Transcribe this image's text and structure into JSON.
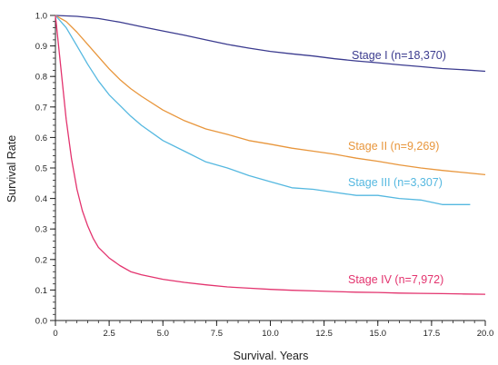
{
  "chart_data": {
    "type": "line",
    "title": "",
    "xlabel": "Survival. Years",
    "ylabel": "Survival Rate",
    "xlim": [
      0,
      20
    ],
    "ylim": [
      0,
      1
    ],
    "x_ticks": [
      "0",
      "2.5",
      "5.0",
      "7.5",
      "10.0",
      "12.5",
      "15.0",
      "17.5",
      "20.0"
    ],
    "y_ticks": [
      "0.0",
      "0.1",
      "0.2",
      "0.3",
      "0.4",
      "0.5",
      "0.6",
      "0.7",
      "0.8",
      "0.9",
      "1.0"
    ],
    "grid": false,
    "legend": "labels next to curves",
    "series": [
      {
        "name": "Stage I (n=18,370)",
        "color": "#3b3b8f",
        "x": [
          0,
          1,
          2,
          3,
          4,
          5,
          6,
          7,
          8,
          9,
          10,
          11,
          12,
          13,
          14,
          15,
          16,
          17,
          18,
          19,
          20
        ],
        "y": [
          1.0,
          0.997,
          0.99,
          0.978,
          0.963,
          0.949,
          0.935,
          0.92,
          0.905,
          0.893,
          0.882,
          0.874,
          0.867,
          0.858,
          0.851,
          0.845,
          0.838,
          0.832,
          0.826,
          0.822,
          0.817
        ]
      },
      {
        "name": "Stage II (n=9,269)",
        "color": "#e8963c",
        "x": [
          0,
          0.5,
          1,
          1.5,
          2,
          2.5,
          3,
          3.5,
          4,
          5,
          6,
          7,
          8,
          9,
          10,
          11,
          12,
          13,
          14,
          15,
          16,
          17,
          18,
          19,
          20
        ],
        "y": [
          1.0,
          0.98,
          0.945,
          0.905,
          0.865,
          0.825,
          0.79,
          0.76,
          0.735,
          0.69,
          0.655,
          0.628,
          0.61,
          0.59,
          0.578,
          0.565,
          0.555,
          0.545,
          0.532,
          0.522,
          0.51,
          0.5,
          0.492,
          0.485,
          0.478
        ]
      },
      {
        "name": "Stage III (n=3,307)",
        "color": "#55b8e0",
        "x": [
          0,
          0.5,
          1,
          1.5,
          2,
          2.5,
          3,
          3.5,
          4,
          5,
          6,
          7,
          8,
          9,
          10,
          11,
          12,
          13,
          14,
          15,
          16,
          17,
          18,
          19,
          19.3
        ],
        "y": [
          1.0,
          0.96,
          0.9,
          0.84,
          0.785,
          0.74,
          0.705,
          0.67,
          0.64,
          0.59,
          0.555,
          0.52,
          0.5,
          0.475,
          0.455,
          0.435,
          0.43,
          0.42,
          0.41,
          0.41,
          0.4,
          0.395,
          0.38,
          0.38,
          0.38
        ]
      },
      {
        "name": "Stage IV (n=7,972)",
        "color": "#e3336e",
        "x": [
          0,
          0.25,
          0.5,
          0.75,
          1,
          1.25,
          1.5,
          1.75,
          2,
          2.5,
          3,
          3.5,
          4,
          5,
          6,
          7,
          8,
          9,
          10,
          11,
          12,
          13,
          14,
          15,
          16,
          17,
          18,
          19,
          20
        ],
        "y": [
          1.0,
          0.83,
          0.66,
          0.53,
          0.43,
          0.36,
          0.31,
          0.27,
          0.24,
          0.205,
          0.18,
          0.16,
          0.15,
          0.135,
          0.125,
          0.117,
          0.11,
          0.106,
          0.102,
          0.099,
          0.097,
          0.095,
          0.093,
          0.092,
          0.09,
          0.089,
          0.088,
          0.087,
          0.086
        ]
      }
    ]
  }
}
